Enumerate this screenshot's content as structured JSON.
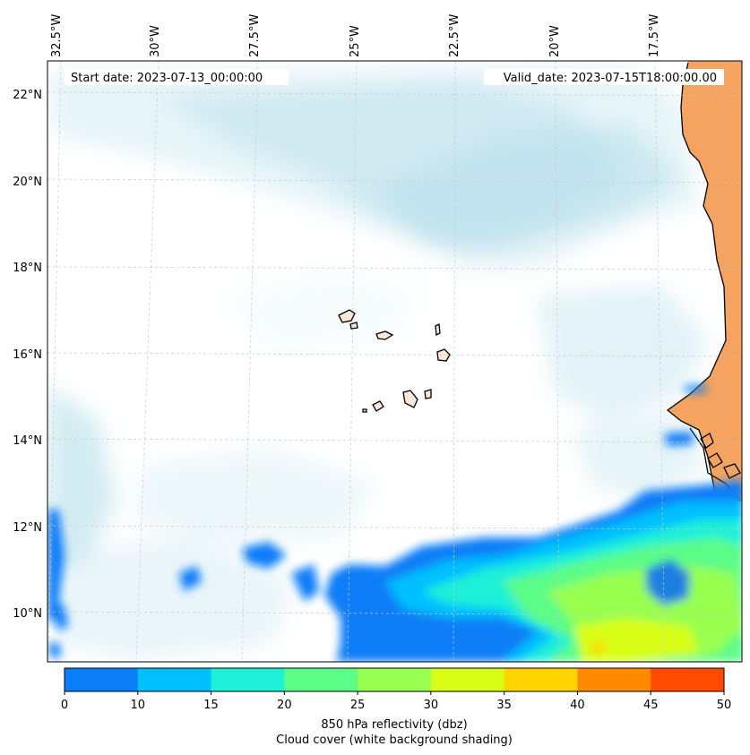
{
  "header": {
    "start_date": "Start date: 2023-07-13_00:00:00",
    "valid_date": "Valid_date: 2023-07-15T18:00:00.00"
  },
  "axes": {
    "longitude_labels": [
      "32.5°W",
      "30°W",
      "27.5°W",
      "25°W",
      "22.5°W",
      "20°W",
      "17.5°W"
    ],
    "latitude_labels": [
      "22°N",
      "20°N",
      "18°N",
      "16°N",
      "14°N",
      "12°N",
      "10°N"
    ]
  },
  "colorbar": {
    "ticks": [
      "0",
      "10",
      "15",
      "20",
      "25",
      "30",
      "35",
      "40",
      "45",
      "50"
    ],
    "colors": [
      "#0a7ef7",
      "#00c0ff",
      "#1ef0d8",
      "#5cfc88",
      "#98ff50",
      "#d8fe18",
      "#ffd400",
      "#ff8a00",
      "#ff4b00"
    ],
    "label_line1": "850 hPa reflectivity (dbz)",
    "label_line2": "Cloud cover (white background shading)"
  },
  "colors": {
    "cloud": "#b6dfea",
    "land": "#f4a460",
    "coast": "#000000",
    "grid": "#c8c8c8"
  }
}
